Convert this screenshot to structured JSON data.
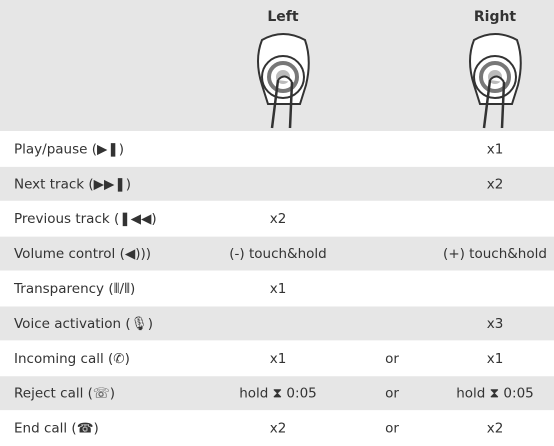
{
  "table": {
    "header": {
      "left": "Left",
      "right": "Right"
    },
    "rows": [
      {
        "label": "Play/pause (▶❚)",
        "right": "x1"
      },
      {
        "label": "Next track (▶▶❚)",
        "right": "x2"
      },
      {
        "label": "Previous track (❚◀◀)",
        "left": "x2"
      },
      {
        "label": "Volume control (◀)))",
        "left": "(-) touch&hold",
        "right": "(+) touch&hold"
      },
      {
        "label": "Transparency (⦀/⦀)",
        "left": "x1"
      },
      {
        "label": "Voice activation (🎙)",
        "right": "x3"
      },
      {
        "label": "Incoming call (✆)",
        "left": "x1",
        "or": "or",
        "right": "x1"
      },
      {
        "label": "Reject call (☏)",
        "left": "hold ⧗ 0:05",
        "or": "or",
        "right": "hold ⧗ 0:05"
      },
      {
        "label": "End call (☎)",
        "left": "x2",
        "or": "or",
        "right": "x2"
      }
    ]
  }
}
